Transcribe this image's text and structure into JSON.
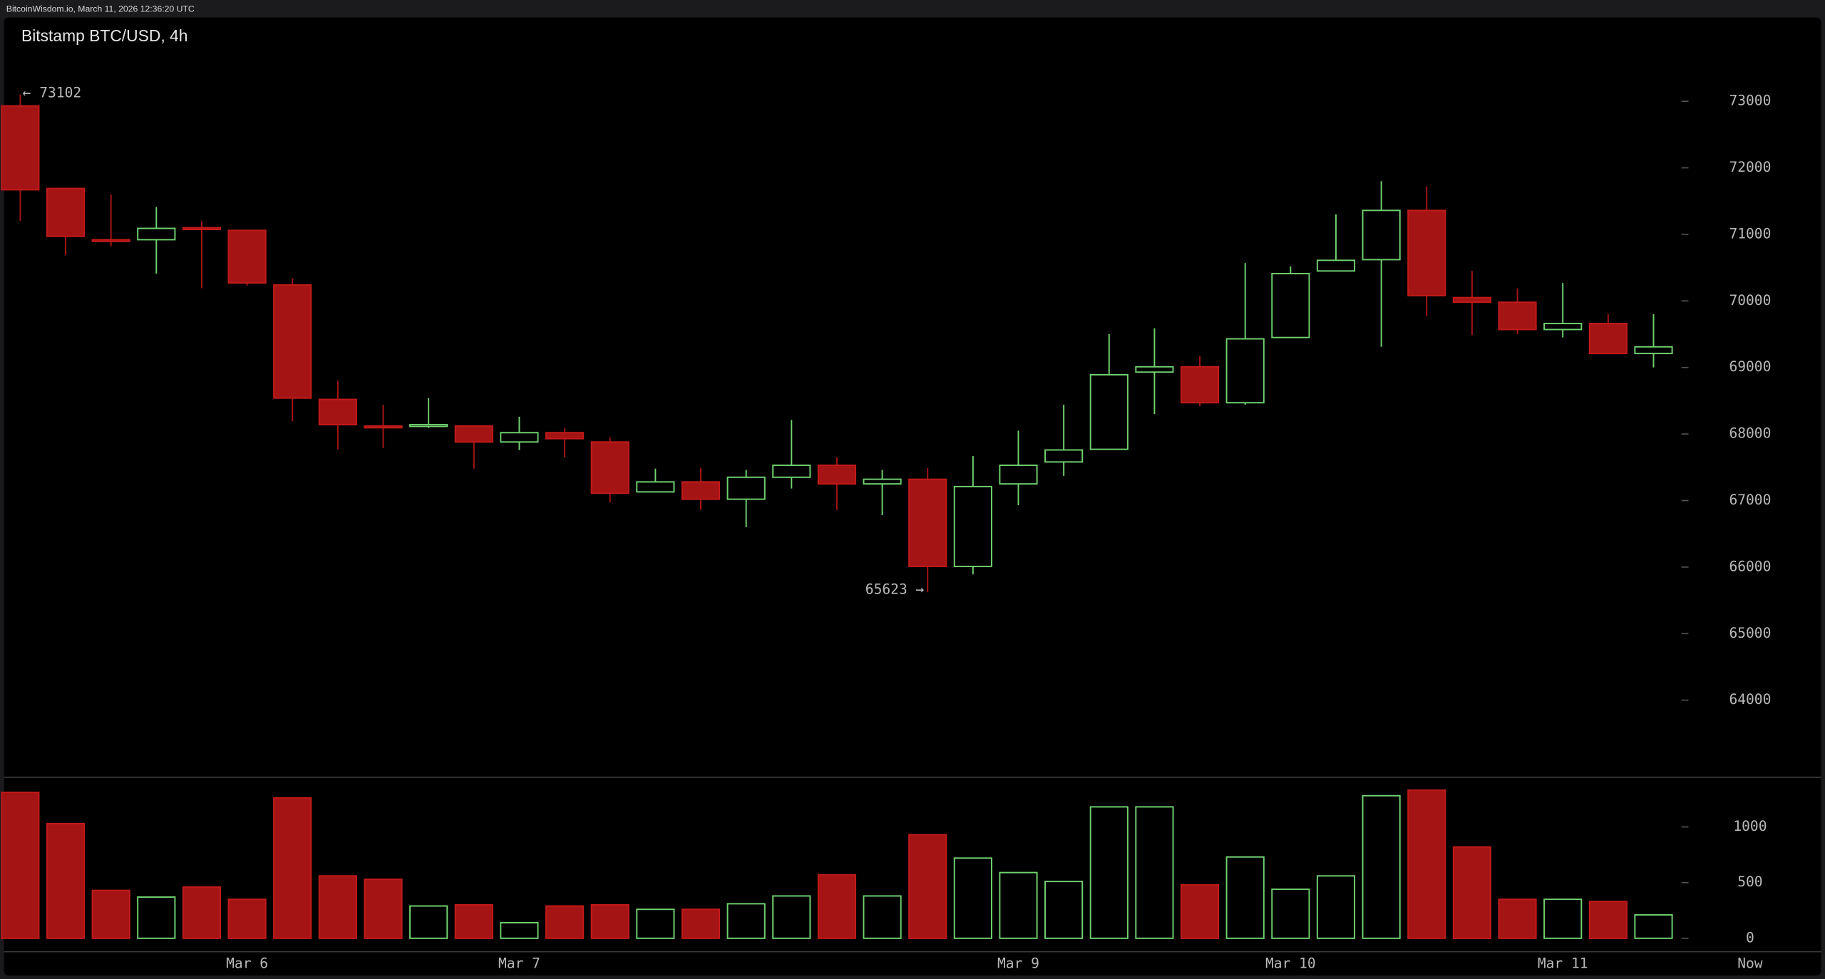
{
  "header": {
    "source": "BitcoinWisdom.io, March 11, 2026 12:36:20 UTC"
  },
  "chart_data": {
    "type": "candlestick",
    "title": "Bitstamp BTC/USD, 4h",
    "categories": [
      null,
      null,
      null,
      null,
      null,
      "Mar 6",
      null,
      null,
      null,
      null,
      null,
      "Mar 7",
      null,
      null,
      null,
      null,
      null,
      null,
      null,
      null,
      null,
      null,
      "Mar 9",
      null,
      null,
      null,
      null,
      null,
      "Mar 10",
      null,
      null,
      null,
      null,
      null,
      "Mar 11",
      null,
      null
    ],
    "now_label": "Now",
    "open": [
      72930,
      71690,
      70920,
      70920,
      71100,
      71060,
      70240,
      68520,
      68120,
      68120,
      68120,
      67880,
      68020,
      67880,
      67130,
      67280,
      67020,
      67350,
      67530,
      67250,
      67320,
      66010,
      67250,
      67580,
      67770,
      68930,
      69010,
      68470,
      69450,
      70450,
      70620,
      71360,
      70050,
      69980,
      69570,
      69660,
      69210
    ],
    "high": [
      73102,
      71690,
      71600,
      71410,
      71200,
      71060,
      70340,
      68800,
      68440,
      68540,
      68120,
      68260,
      68090,
      67950,
      67480,
      67490,
      67460,
      68210,
      67650,
      67460,
      67490,
      67670,
      68050,
      68440,
      69500,
      69590,
      69170,
      70570,
      70520,
      71300,
      71800,
      71720,
      70450,
      70190,
      70270,
      69800,
      69800
    ],
    "low": [
      71200,
      70690,
      70820,
      70410,
      70190,
      70230,
      68190,
      67770,
      67790,
      68090,
      67480,
      67760,
      67650,
      66970,
      67130,
      66860,
      66600,
      67180,
      66860,
      66780,
      65623,
      65890,
      66930,
      67370,
      67770,
      68300,
      68420,
      68440,
      69450,
      70450,
      69310,
      69770,
      69490,
      69500,
      69450,
      69210,
      69000
    ],
    "close": [
      71670,
      70970,
      70900,
      71090,
      71080,
      70270,
      68540,
      68140,
      68100,
      68140,
      67880,
      68020,
      67930,
      67110,
      67280,
      67020,
      67350,
      67530,
      67250,
      67320,
      66010,
      67210,
      67530,
      67760,
      68890,
      69010,
      68470,
      69430,
      70410,
      70610,
      71360,
      70080,
      69980,
      69570,
      69660,
      69210,
      69310
    ],
    "volume": [
      1310,
      1030,
      430,
      370,
      460,
      350,
      1260,
      560,
      530,
      290,
      300,
      140,
      290,
      300,
      260,
      260,
      310,
      380,
      570,
      380,
      930,
      720,
      590,
      510,
      1180,
      1180,
      480,
      730,
      440,
      560,
      1280,
      1330,
      820,
      350,
      350,
      330,
      210
    ],
    "annotations": [
      {
        "text": "← 73102",
        "value": 73102
      },
      {
        "text": "65623 →",
        "value": 65623
      }
    ],
    "up_color": "#6fd06f",
    "down_color": "#a51414",
    "ylim": [
      62850,
      74260
    ],
    "yticks": [
      64000,
      65000,
      66000,
      67000,
      68000,
      69000,
      70000,
      71000,
      72000,
      73000
    ],
    "y2lim": [
      -115,
      1430
    ],
    "y2ticks": [
      0,
      500,
      1000
    ]
  }
}
